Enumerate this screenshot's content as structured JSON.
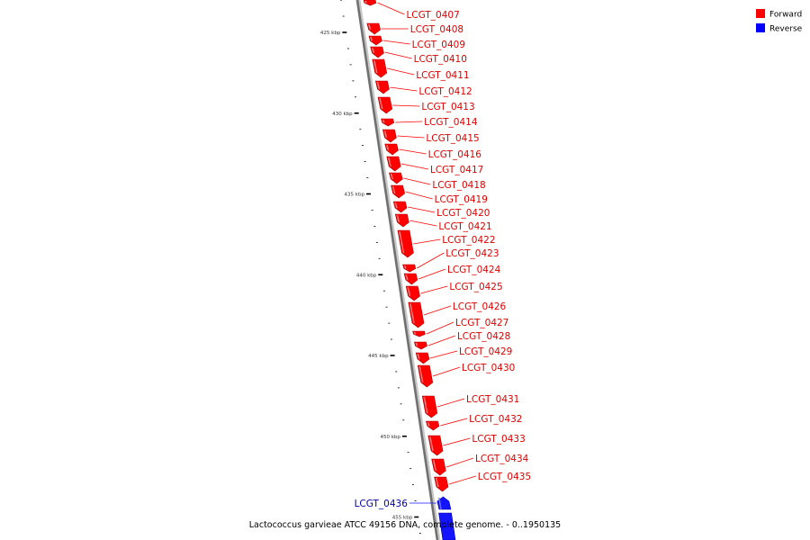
{
  "title": "Lactococcus garvieae ATCC 49156 DNA, complete genome. - 0..1950135",
  "legend": [
    {
      "label": "Forward",
      "color": "#ff0000"
    },
    {
      "label": "Reverse",
      "color": "#0000ff"
    }
  ],
  "ticks": [
    {
      "label": "425 kbp",
      "kbp": 425
    },
    {
      "label": "430 kbp",
      "kbp": 430
    },
    {
      "label": "435 kbp",
      "kbp": 435
    },
    {
      "label": "440 kbp",
      "kbp": 440
    },
    {
      "label": "445 kbp",
      "kbp": 445
    },
    {
      "label": "450 kbp",
      "kbp": 450
    },
    {
      "label": "455 kbp",
      "kbp": 455
    }
  ],
  "genes": [
    {
      "name": "LCGT_0407",
      "strand": "forward"
    },
    {
      "name": "LCGT_0408",
      "strand": "forward"
    },
    {
      "name": "LCGT_0409",
      "strand": "forward"
    },
    {
      "name": "LCGT_0410",
      "strand": "forward"
    },
    {
      "name": "LCGT_0411",
      "strand": "forward"
    },
    {
      "name": "LCGT_0412",
      "strand": "forward"
    },
    {
      "name": "LCGT_0413",
      "strand": "forward"
    },
    {
      "name": "LCGT_0414",
      "strand": "forward"
    },
    {
      "name": "LCGT_0415",
      "strand": "forward"
    },
    {
      "name": "LCGT_0416",
      "strand": "forward"
    },
    {
      "name": "LCGT_0417",
      "strand": "forward"
    },
    {
      "name": "LCGT_0418",
      "strand": "forward"
    },
    {
      "name": "LCGT_0419",
      "strand": "forward"
    },
    {
      "name": "LCGT_0420",
      "strand": "forward"
    },
    {
      "name": "LCGT_0421",
      "strand": "forward"
    },
    {
      "name": "LCGT_0422",
      "strand": "forward"
    },
    {
      "name": "LCGT_0423",
      "strand": "forward"
    },
    {
      "name": "LCGT_0424",
      "strand": "forward"
    },
    {
      "name": "LCGT_0425",
      "strand": "forward"
    },
    {
      "name": "LCGT_0426",
      "strand": "forward"
    },
    {
      "name": "LCGT_0427",
      "strand": "forward"
    },
    {
      "name": "LCGT_0428",
      "strand": "forward"
    },
    {
      "name": "LCGT_0429",
      "strand": "forward"
    },
    {
      "name": "LCGT_0430",
      "strand": "forward"
    },
    {
      "name": "LCGT_0431",
      "strand": "forward"
    },
    {
      "name": "LCGT_0432",
      "strand": "forward"
    },
    {
      "name": "LCGT_0433",
      "strand": "forward"
    },
    {
      "name": "LCGT_0434",
      "strand": "forward"
    },
    {
      "name": "LCGT_0435",
      "strand": "forward"
    },
    {
      "name": "LCGT_0436",
      "strand": "reverse"
    }
  ]
}
